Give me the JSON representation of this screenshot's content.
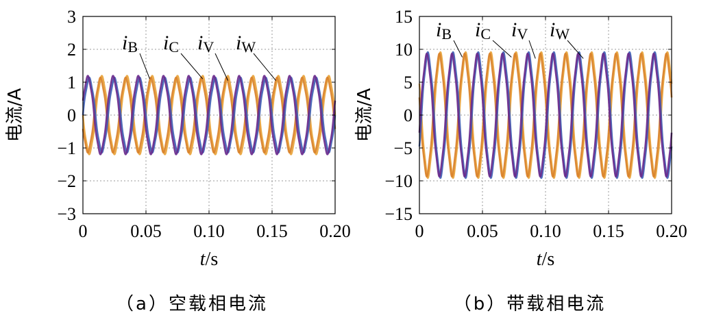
{
  "chart_data": [
    {
      "id": "a",
      "type": "line",
      "caption": "（a）空载相电流",
      "xlabel": "t/s",
      "xlabel_var": "t",
      "xlabel_unit": "/s",
      "ylabel": "电流/A",
      "xlim": [
        0,
        0.2
      ],
      "ylim": [
        -3,
        3
      ],
      "xticks": [
        0,
        0.05,
        0.1,
        0.15,
        0.2
      ],
      "xtick_labels": [
        "0",
        "0.05",
        "0.10",
        "0.15",
        "0.20"
      ],
      "yticks": [
        -3,
        -2,
        -1,
        0,
        1,
        2,
        3
      ],
      "ytick_labels": [
        "−3",
        "−2",
        "−1",
        "0",
        "1",
        "2",
        "3"
      ],
      "grid": true,
      "frequency_hz": 50,
      "series": [
        {
          "name": "iB",
          "sub": "B",
          "color": "#e8a33a",
          "amplitude": 1.15,
          "phase_deg": 180
        },
        {
          "name": "iC",
          "sub": "C",
          "color": "#d9822b",
          "amplitude": 1.1,
          "phase_deg": 200
        },
        {
          "name": "iV",
          "sub": "V",
          "color": "#3f5fb5",
          "amplitude": 1.1,
          "phase_deg": 0
        },
        {
          "name": "iW",
          "sub": "W",
          "color": "#6a2a8c",
          "amplitude": 1.15,
          "phase_deg": 20
        }
      ],
      "annotations": [
        {
          "series": "iB",
          "text": "i",
          "sub": "B",
          "point_x": 0.053,
          "point_y": 1.1
        },
        {
          "series": "iC",
          "text": "i",
          "sub": "C",
          "point_x": 0.095,
          "point_y": 1.1
        },
        {
          "series": "iV",
          "text": "i",
          "sub": "V",
          "point_x": 0.115,
          "point_y": 1.05
        },
        {
          "series": "iW",
          "text": "i",
          "sub": "W",
          "point_x": 0.153,
          "point_y": 1.05
        }
      ]
    },
    {
      "id": "b",
      "type": "line",
      "caption": "（b）带载相电流",
      "xlabel": "t/s",
      "xlabel_var": "t",
      "xlabel_unit": "/s",
      "ylabel": "电流/A",
      "xlim": [
        0,
        0.2
      ],
      "ylim": [
        -15,
        15
      ],
      "xticks": [
        0,
        0.05,
        0.1,
        0.15,
        0.2
      ],
      "xtick_labels": [
        "0",
        "0.05",
        "0.10",
        "0.15",
        "0.20"
      ],
      "yticks": [
        -15,
        -10,
        -5,
        0,
        5,
        10,
        15
      ],
      "ytick_labels": [
        "−15",
        "−10",
        "−5",
        "0",
        "5",
        "10",
        "15"
      ],
      "grid": true,
      "frequency_hz": 50,
      "series": [
        {
          "name": "iB",
          "sub": "B",
          "color": "#e8a33a",
          "amplitude": 9.2,
          "phase_deg": 150
        },
        {
          "name": "iC",
          "sub": "C",
          "color": "#d9822b",
          "amplitude": 9.0,
          "phase_deg": 165
        },
        {
          "name": "iV",
          "sub": "V",
          "color": "#3f5fb5",
          "amplitude": 9.2,
          "phase_deg": -30
        },
        {
          "name": "iW",
          "sub": "W",
          "color": "#6a2a8c",
          "amplitude": 9.0,
          "phase_deg": -15
        }
      ],
      "annotations": [
        {
          "series": "iB",
          "text": "i",
          "sub": "B",
          "point_x": 0.034,
          "point_y": 8.8
        },
        {
          "series": "iC",
          "text": "i",
          "sub": "C",
          "point_x": 0.073,
          "point_y": 8.8
        },
        {
          "series": "iV",
          "text": "i",
          "sub": "V",
          "point_x": 0.092,
          "point_y": 8.6
        },
        {
          "series": "iW",
          "text": "i",
          "sub": "W",
          "point_x": 0.13,
          "point_y": 8.6
        }
      ]
    }
  ]
}
